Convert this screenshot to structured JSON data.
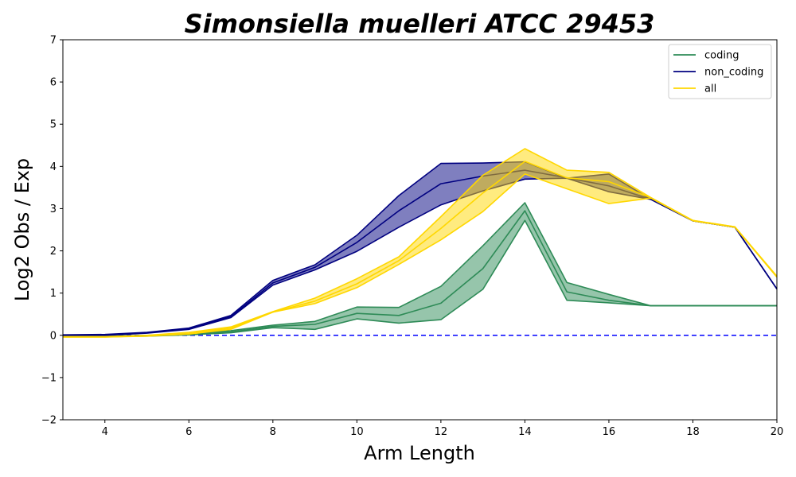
{
  "chart_data": {
    "type": "line",
    "title": "Simonsiella muelleri ATCC 29453",
    "xlabel": "Arm Length",
    "ylabel": "Log2 Obs / Exp",
    "xlim": [
      3,
      20
    ],
    "ylim": [
      -2,
      7
    ],
    "xticks": [
      "4",
      "6",
      "8",
      "10",
      "12",
      "14",
      "16",
      "18",
      "20"
    ],
    "yticks": [
      "-2",
      "-1",
      "0",
      "1",
      "2",
      "3",
      "4",
      "5",
      "6",
      "7"
    ],
    "reference_line": {
      "y": 0,
      "style": "dashed",
      "color": "#0000ff"
    },
    "legend_position": "top-right",
    "x": [
      3,
      4,
      5,
      6,
      7,
      8,
      9,
      10,
      11,
      12,
      13,
      14,
      15,
      16,
      17,
      18,
      19,
      20
    ],
    "series": [
      {
        "name": "coding",
        "color": "#2e8b57",
        "mean": [
          -0.03,
          -0.03,
          -0.01,
          0.02,
          0.08,
          0.21,
          0.26,
          0.52,
          0.47,
          0.76,
          1.58,
          2.95,
          1.03,
          0.83,
          0.7,
          0.7,
          0.7,
          0.7
        ],
        "lower": [
          -0.03,
          -0.03,
          -0.02,
          0.01,
          0.06,
          0.18,
          0.14,
          0.39,
          0.29,
          0.37,
          1.09,
          2.72,
          0.83,
          0.77,
          0.7,
          0.7,
          0.7,
          0.7
        ],
        "upper": [
          -0.02,
          -0.02,
          0.0,
          0.04,
          0.11,
          0.24,
          0.33,
          0.67,
          0.66,
          1.16,
          2.12,
          3.14,
          1.25,
          0.97,
          0.7,
          0.7,
          0.7,
          0.7
        ]
      },
      {
        "name": "non_coding",
        "color": "#000080",
        "mean": [
          0.0,
          0.01,
          0.06,
          0.16,
          0.44,
          1.24,
          1.61,
          2.2,
          2.95,
          3.59,
          3.77,
          3.91,
          3.73,
          3.54,
          3.22,
          2.71,
          2.56,
          1.1
        ],
        "lower": [
          0.0,
          0.0,
          0.05,
          0.14,
          0.42,
          1.19,
          1.55,
          1.99,
          2.56,
          3.09,
          3.42,
          3.7,
          3.72,
          3.4,
          3.22,
          2.71,
          2.56,
          1.1
        ],
        "upper": [
          0.01,
          0.02,
          0.07,
          0.17,
          0.47,
          1.3,
          1.67,
          2.37,
          3.31,
          4.07,
          4.08,
          4.11,
          3.72,
          3.82,
          3.22,
          2.71,
          2.56,
          1.1
        ]
      },
      {
        "name": "all",
        "color": "#ffd700",
        "mean": [
          -0.04,
          -0.04,
          -0.01,
          0.04,
          0.17,
          0.55,
          0.81,
          1.22,
          1.77,
          2.53,
          3.37,
          4.12,
          3.73,
          3.64,
          3.26,
          2.72,
          2.57,
          1.38
        ],
        "lower": [
          -0.04,
          -0.04,
          -0.02,
          0.03,
          0.14,
          0.55,
          0.75,
          1.13,
          1.68,
          2.26,
          2.93,
          3.82,
          3.47,
          3.12,
          3.25,
          2.71,
          2.56,
          1.38
        ],
        "upper": [
          -0.03,
          -0.03,
          0.0,
          0.07,
          0.2,
          0.56,
          0.88,
          1.34,
          1.86,
          2.81,
          3.79,
          4.42,
          3.91,
          3.86,
          3.26,
          2.72,
          2.57,
          1.4
        ]
      }
    ]
  }
}
